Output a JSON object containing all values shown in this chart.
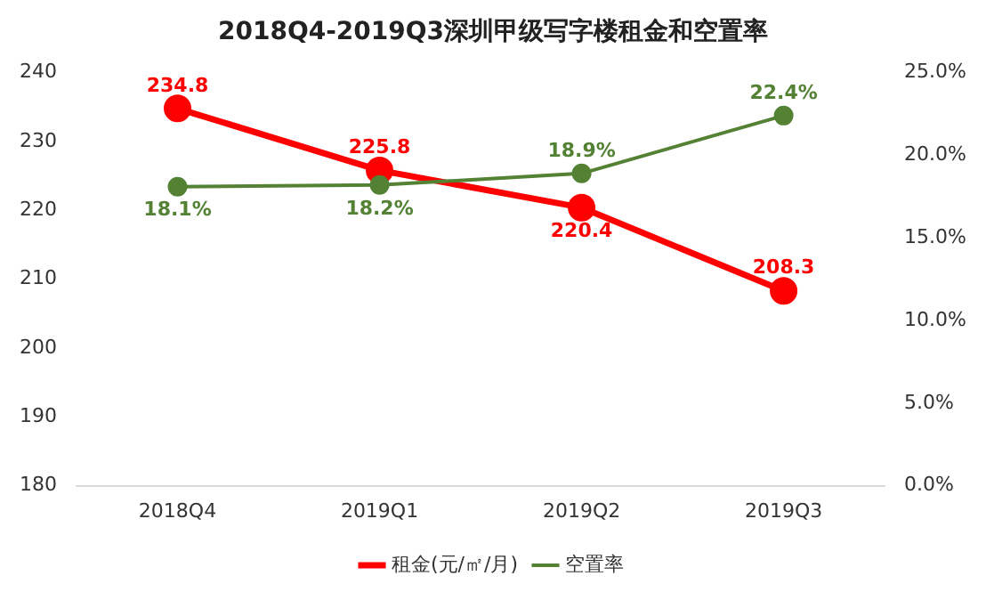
{
  "chart_data": {
    "type": "line",
    "title": "2018Q4-2019Q3深圳甲级写字楼租金和空置率",
    "categories": [
      "2018Q4",
      "2019Q1",
      "2019Q2",
      "2019Q3"
    ],
    "series": [
      {
        "name": "租金(元/㎡/月)",
        "color": "#ff0000",
        "values": [
          234.8,
          225.8,
          220.4,
          208.3
        ],
        "value_labels": [
          "234.8",
          "225.8",
          "220.4",
          "208.3"
        ]
      },
      {
        "name": "空置率",
        "color": "#548235",
        "values": [
          18.1,
          18.2,
          18.9,
          22.4
        ],
        "axis": "y2",
        "value_labels": [
          "18.1%",
          "18.2%",
          "18.9%",
          "22.4%"
        ]
      }
    ],
    "ylim": [
      180,
      240
    ],
    "yticks": [
      180,
      190,
      200,
      210,
      220,
      230,
      240
    ],
    "y2lim": [
      0,
      25
    ],
    "y2ticks": [
      {
        "value": 0,
        "label": "0.0%"
      },
      {
        "value": 5,
        "label": "5.0%"
      },
      {
        "value": 10,
        "label": "10.0%"
      },
      {
        "value": 15,
        "label": "15.0%"
      },
      {
        "value": 20,
        "label": "20.0%"
      },
      {
        "value": 25,
        "label": "25.0%"
      }
    ],
    "grid": false,
    "legend": "bottom",
    "marker": "circle",
    "line_style": "solid"
  }
}
